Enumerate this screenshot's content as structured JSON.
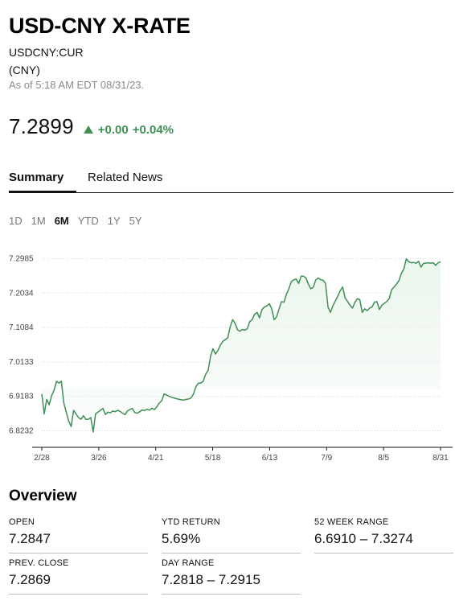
{
  "header": {
    "title": "USD-CNY X-RATE",
    "ticker": "USDCNY:CUR",
    "currency": "(CNY)",
    "as_of": "As of 5:18 AM EDT 08/31/23."
  },
  "quote": {
    "price": "7.2899",
    "change_abs": "+0.00",
    "change_pct": "+0.04%",
    "direction": "up",
    "color_up": "#3f8f55"
  },
  "tabs": [
    {
      "label": "Summary",
      "active": true
    },
    {
      "label": "Related News",
      "active": false
    }
  ],
  "ranges": [
    {
      "label": "1D",
      "active": false
    },
    {
      "label": "1M",
      "active": false
    },
    {
      "label": "6M",
      "active": true
    },
    {
      "label": "YTD",
      "active": false
    },
    {
      "label": "1Y",
      "active": false
    },
    {
      "label": "5Y",
      "active": false
    }
  ],
  "chart_data": {
    "type": "area",
    "title": "",
    "xlabel": "",
    "ylabel": "",
    "y_ticks": [
      "7.2985",
      "7.2034",
      "7.1084",
      "7.0133",
      "6.9183",
      "6.8232"
    ],
    "y_tick_values": [
      7.2985,
      7.2034,
      7.1084,
      7.0133,
      6.9183,
      6.8232
    ],
    "x_ticks": [
      "2/28",
      "3/26",
      "4/21",
      "5/18",
      "6/13",
      "7/9",
      "8/5",
      "8/31"
    ],
    "ylim": [
      6.78,
      7.315
    ],
    "grid": "horizontal dotted",
    "line_color": "#3f8f55",
    "fill_color": "#eaf6ec",
    "series": [
      {
        "values": [
          6.925,
          6.87,
          6.91,
          6.895,
          6.92,
          6.935,
          6.96,
          6.955,
          6.96,
          6.9,
          6.875,
          6.85,
          6.835,
          6.88,
          6.87,
          6.86,
          6.855,
          6.865,
          6.855,
          6.855,
          6.86,
          6.82,
          6.87,
          6.875,
          6.88,
          6.885,
          6.868,
          6.875,
          6.873,
          6.878,
          6.876,
          6.88,
          6.877,
          6.872,
          6.868,
          6.878,
          6.882,
          6.885,
          6.874,
          6.872,
          6.876,
          6.881,
          6.879,
          6.883,
          6.88,
          6.886,
          6.882,
          6.889,
          6.9,
          6.906,
          6.925,
          6.922,
          6.919,
          6.916,
          6.914,
          6.912,
          6.91,
          6.909,
          6.908,
          6.91,
          6.911,
          6.914,
          6.925,
          6.945,
          6.955,
          6.955,
          6.96,
          6.98,
          6.99,
          7.03,
          7.05,
          7.035,
          7.045,
          7.06,
          7.07,
          7.075,
          7.08,
          7.11,
          7.13,
          7.12,
          7.102,
          7.098,
          7.103,
          7.101,
          7.105,
          7.125,
          7.13,
          7.145,
          7.15,
          7.135,
          7.158,
          7.165,
          7.168,
          7.174,
          7.16,
          7.13,
          7.138,
          7.16,
          7.18,
          7.178,
          7.2,
          7.215,
          7.235,
          7.24,
          7.242,
          7.23,
          7.25,
          7.25,
          7.245,
          7.228,
          7.215,
          7.22,
          7.24,
          7.245,
          7.24,
          7.239,
          7.23,
          7.165,
          7.15,
          7.168,
          7.182,
          7.195,
          7.21,
          7.22,
          7.19,
          7.18,
          7.17,
          7.162,
          7.178,
          7.188,
          7.185,
          7.15,
          7.16,
          7.155,
          7.162,
          7.165,
          7.178,
          7.18,
          7.158,
          7.17,
          7.175,
          7.18,
          7.188,
          7.212,
          7.22,
          7.228,
          7.238,
          7.258,
          7.27,
          7.298,
          7.29,
          7.287,
          7.288,
          7.286,
          7.291,
          7.275,
          7.285,
          7.286,
          7.287,
          7.286,
          7.287,
          7.28,
          7.287,
          7.29
        ]
      }
    ]
  },
  "overview": {
    "title": "Overview",
    "open_label": "OPEN",
    "open_value": "7.2847",
    "ytd_label": "YTD RETURN",
    "ytd_value": "5.69%",
    "week52_label": "52 WEEK RANGE",
    "week52_value": "6.6910 – 7.3274",
    "prev_label": "PREV. CLOSE",
    "prev_value": "7.2869",
    "day_label": "DAY RANGE",
    "day_value": "7.2818 – 7.2915"
  }
}
